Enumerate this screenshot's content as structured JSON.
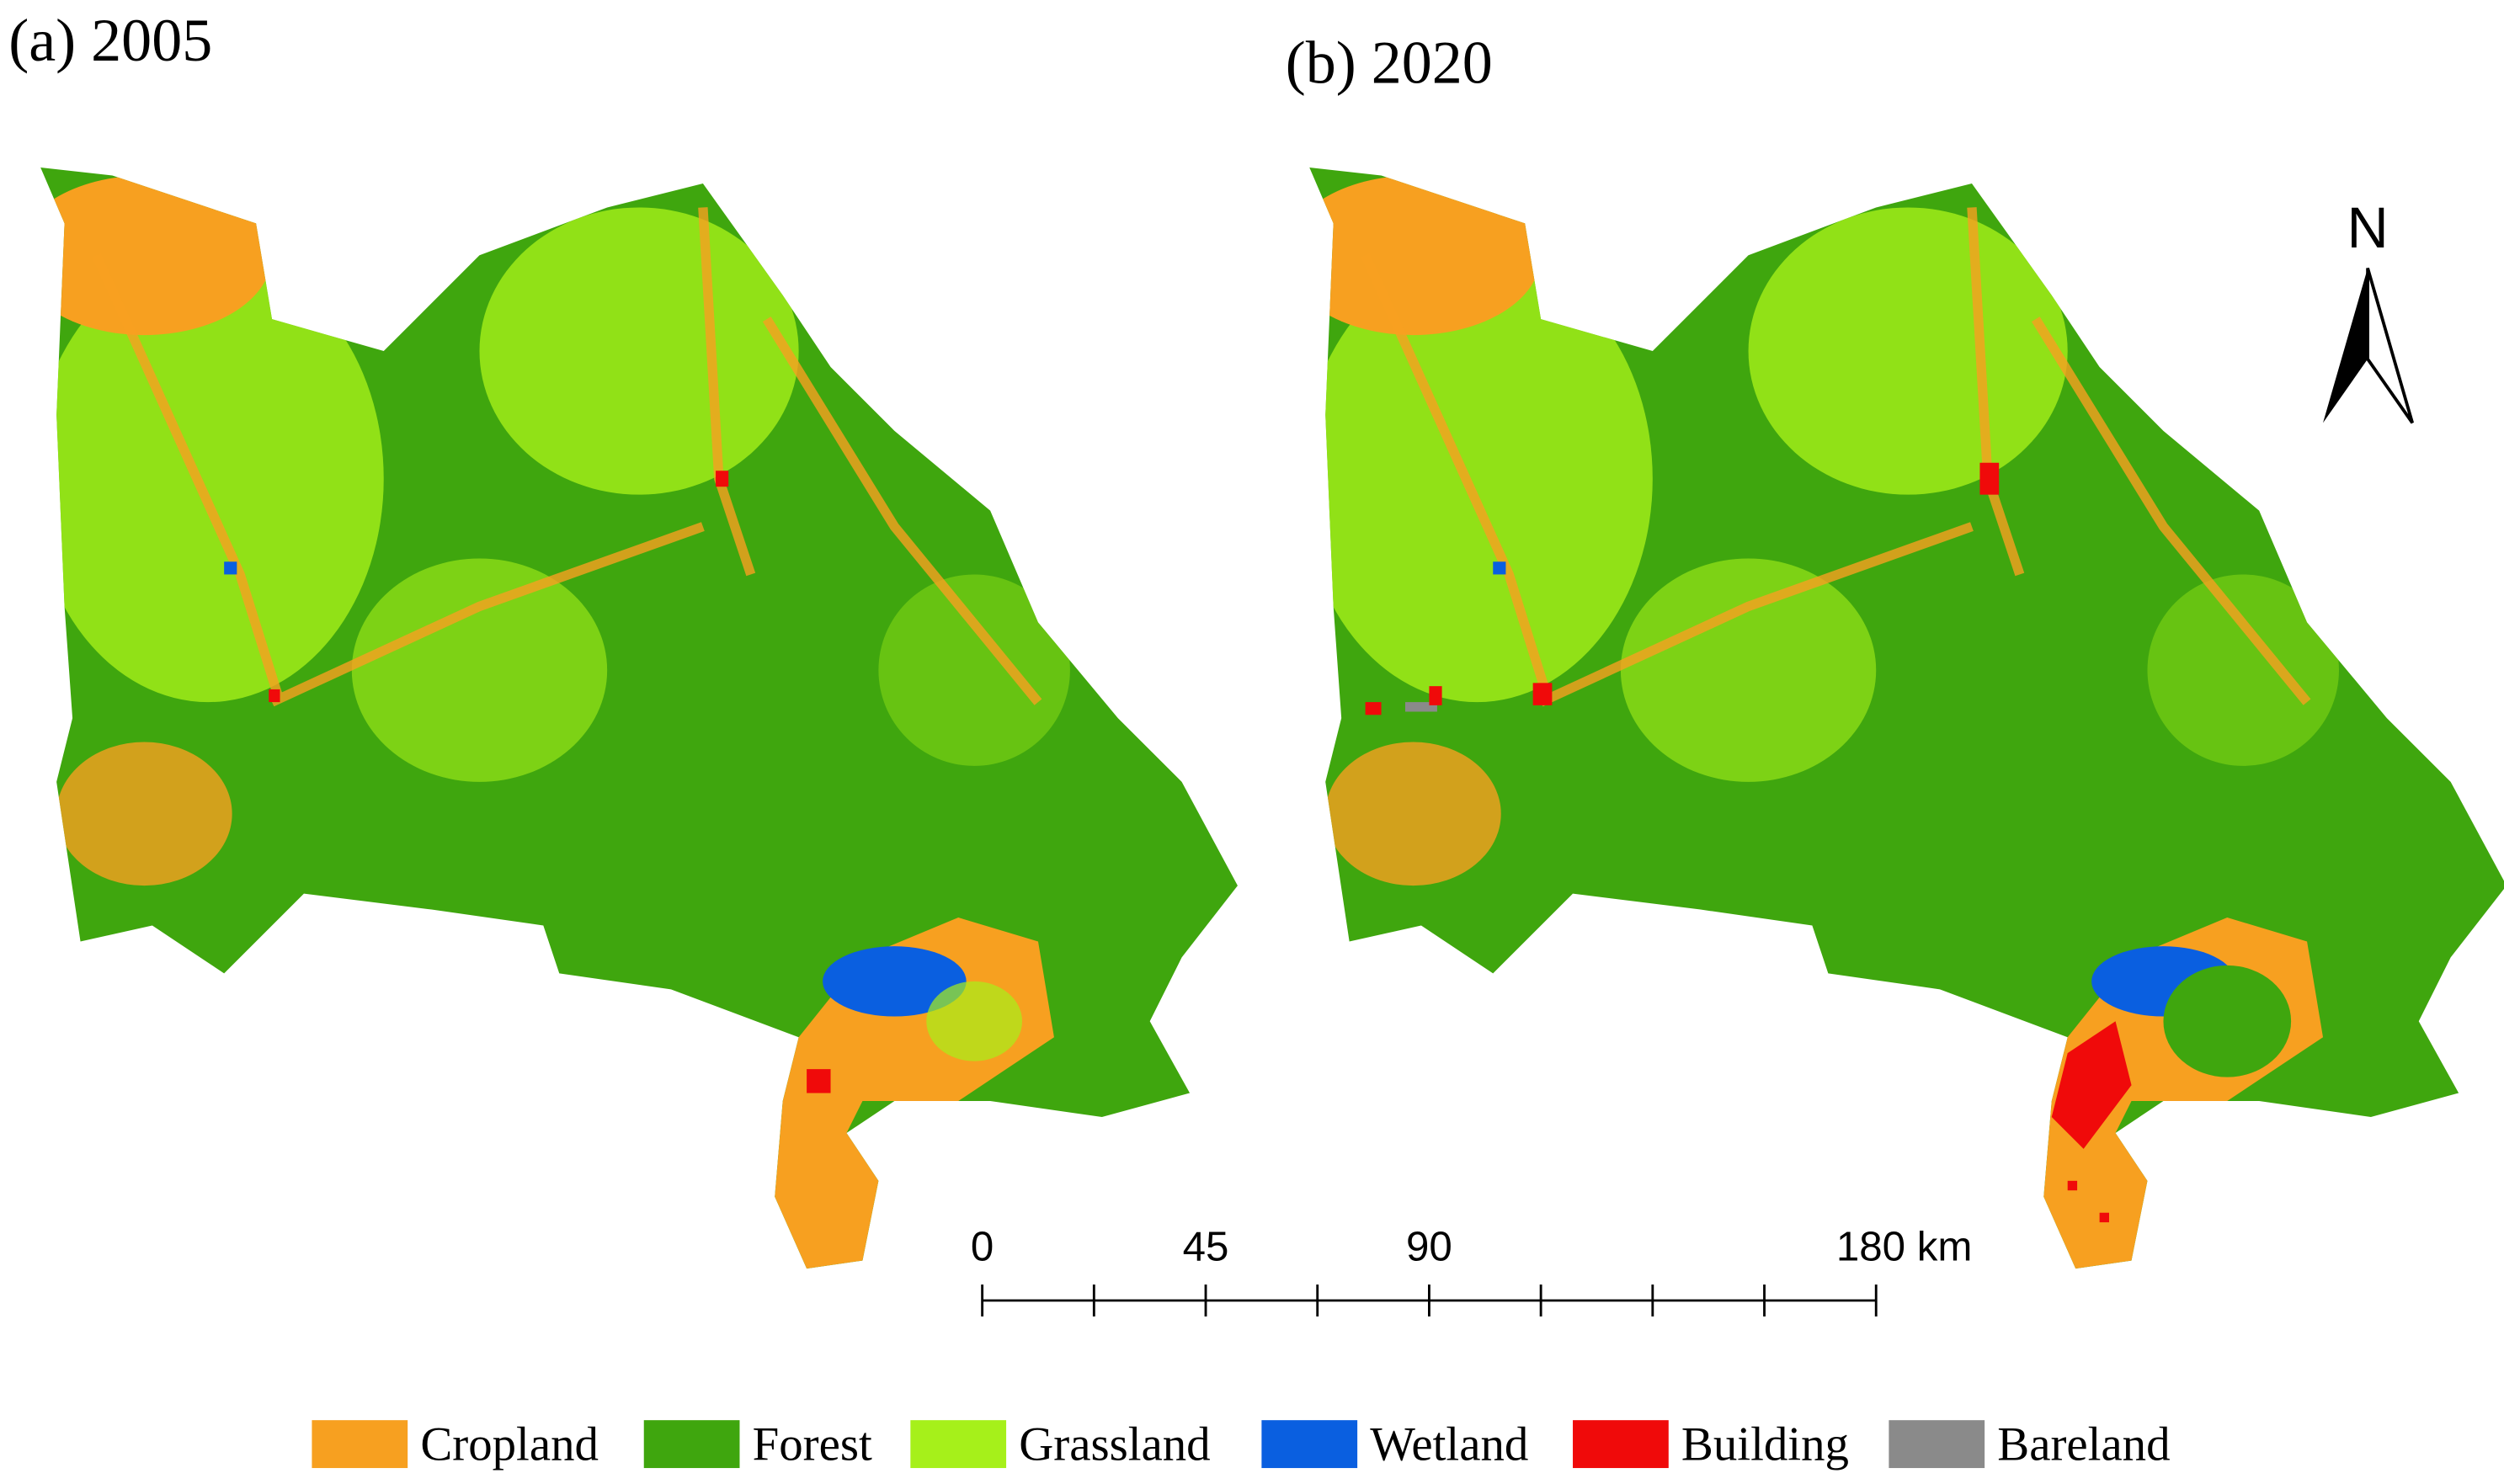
{
  "panels": [
    {
      "title": "(a) 2005"
    },
    {
      "title": "(b) 2020"
    }
  ],
  "north_arrow": {
    "label": "N"
  },
  "scale_bar": {
    "labels": [
      "0",
      "45",
      "90",
      "180 km"
    ]
  },
  "legend": [
    {
      "name": "Cropland",
      "color": "#f7a020"
    },
    {
      "name": "Forest",
      "color": "#3fa60e"
    },
    {
      "name": "Grassland",
      "color": "#a6f01a"
    },
    {
      "name": "Wetland",
      "color": "#0a5fe0"
    },
    {
      "name": "Building",
      "color": "#f00a0a"
    },
    {
      "name": "Bareland",
      "color": "#8a8a8a"
    }
  ]
}
